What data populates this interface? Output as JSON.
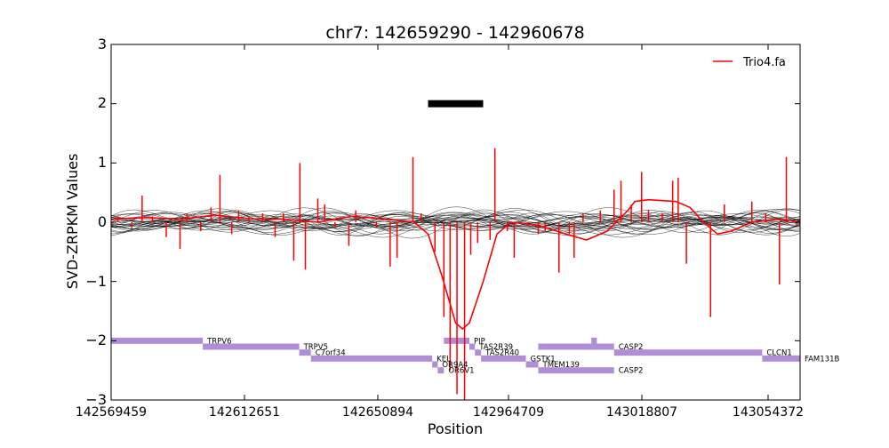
{
  "chart_data": {
    "type": "line",
    "title": "chr7: 142659290 - 142960678",
    "xlabel": "Position",
    "ylabel": "SVD-ZRPKM Values",
    "ylim": [
      -3,
      3
    ],
    "y_ticks": [
      "3",
      "2",
      "1",
      "0",
      "−1",
      "−2",
      "−3"
    ],
    "x_tick_labels": [
      "142569459",
      "142612651",
      "142650894",
      "142964709",
      "143018807",
      "143054372"
    ],
    "legend_location": "top-right",
    "grid": false,
    "colors": {
      "highlight": "#ff0000",
      "background_lines": "#000000",
      "genes": "#b08ed6",
      "call_bar": "#000000"
    },
    "series": [
      {
        "name": "Trio4.fa",
        "smooth": [
          [
            0,
            0.05
          ],
          [
            5,
            0.08
          ],
          [
            10,
            0.05
          ],
          [
            15,
            0.12
          ],
          [
            20,
            0.06
          ],
          [
            25,
            0.05
          ],
          [
            30,
            0.0
          ],
          [
            35,
            0.1
          ],
          [
            40,
            0.05
          ],
          [
            44,
            0.0
          ],
          [
            46,
            -0.2
          ],
          [
            48,
            -0.9
          ],
          [
            50,
            -1.7
          ],
          [
            51,
            -1.8
          ],
          [
            52,
            -1.7
          ],
          [
            54,
            -1.0
          ],
          [
            56,
            -0.2
          ],
          [
            58,
            0.0
          ],
          [
            62,
            -0.05
          ],
          [
            66,
            -0.2
          ],
          [
            69,
            -0.3
          ],
          [
            72,
            -0.15
          ],
          [
            75,
            0.2
          ],
          [
            76,
            0.35
          ],
          [
            78,
            0.38
          ],
          [
            82,
            0.35
          ],
          [
            84,
            0.25
          ],
          [
            86,
            0.0
          ],
          [
            88,
            -0.2
          ],
          [
            90,
            -0.15
          ],
          [
            93,
            0.0
          ],
          [
            97,
            0.05
          ],
          [
            100,
            0.0
          ]
        ],
        "raw": [
          [
            1,
            0.1
          ],
          [
            3,
            -0.1
          ],
          [
            4.5,
            0.45
          ],
          [
            6,
            0.1
          ],
          [
            8,
            -0.25
          ],
          [
            10,
            -0.45
          ],
          [
            11,
            0.15
          ],
          [
            13,
            -0.15
          ],
          [
            14.5,
            0.25
          ],
          [
            15.8,
            0.8
          ],
          [
            17.5,
            -0.2
          ],
          [
            18.5,
            0.2
          ],
          [
            20,
            0.1
          ],
          [
            22,
            0.15
          ],
          [
            23.8,
            -0.25
          ],
          [
            25,
            0.15
          ],
          [
            26.5,
            -0.65
          ],
          [
            27.4,
            1.0
          ],
          [
            28.2,
            -0.8
          ],
          [
            30,
            0.4
          ],
          [
            31,
            0.3
          ],
          [
            32.5,
            -0.1
          ],
          [
            34.5,
            -0.4
          ],
          [
            35.5,
            0.2
          ],
          [
            37,
            0.0
          ],
          [
            38.5,
            -0.1
          ],
          [
            40.5,
            -0.75
          ],
          [
            41.5,
            -0.6
          ],
          [
            43.8,
            1.1
          ],
          [
            45,
            0.15
          ],
          [
            47,
            -0.5
          ],
          [
            48.3,
            -1.6
          ],
          [
            49.2,
            -2.5
          ],
          [
            50.2,
            -2.9
          ],
          [
            51.3,
            -3.0
          ],
          [
            52.2,
            -0.55
          ],
          [
            53.2,
            -0.35
          ],
          [
            55,
            -0.3
          ],
          [
            55.7,
            1.25
          ],
          [
            57.5,
            -0.15
          ],
          [
            58.5,
            -0.6
          ],
          [
            60.5,
            -0.05
          ],
          [
            62,
            -0.2
          ],
          [
            63,
            -0.15
          ],
          [
            65,
            -0.85
          ],
          [
            66.5,
            -0.2
          ],
          [
            67.2,
            -0.6
          ],
          [
            68.5,
            0.15
          ],
          [
            70,
            0.0
          ],
          [
            71,
            0.2
          ],
          [
            73,
            0.55
          ],
          [
            74,
            0.7
          ],
          [
            75.5,
            0.3
          ],
          [
            77,
            0.85
          ],
          [
            78,
            0.2
          ],
          [
            80,
            0.15
          ],
          [
            81.5,
            0.7
          ],
          [
            82.3,
            0.75
          ],
          [
            83.5,
            -0.7
          ],
          [
            87,
            -1.6
          ],
          [
            89,
            0.3
          ],
          [
            91,
            0.0
          ],
          [
            93,
            0.35
          ],
          [
            95,
            0.15
          ],
          [
            97,
            -1.05
          ],
          [
            98,
            1.1
          ],
          [
            99.5,
            -0.05
          ]
        ]
      }
    ],
    "genes": [
      {
        "label": "TRPV6",
        "start": 0.0,
        "end": 13.3,
        "y": -2.0
      },
      {
        "label": "TRPV5",
        "start": 13.3,
        "end": 27.3,
        "y": -2.1
      },
      {
        "label": "C7orf34",
        "start": 27.3,
        "end": 29.0,
        "y": -2.2
      },
      {
        "label": "KEL",
        "start": 29.0,
        "end": 46.6,
        "y": -2.3
      },
      {
        "label": "OR9A4",
        "start": 46.6,
        "end": 47.4,
        "y": -2.4
      },
      {
        "label": "OR6V1",
        "start": 47.4,
        "end": 48.3,
        "y": -2.5
      },
      {
        "label": "PIP",
        "start": 48.3,
        "end": 52.0,
        "y": -2.0
      },
      {
        "label": "TAS2R39",
        "start": 52.0,
        "end": 52.8,
        "y": -2.1
      },
      {
        "label": "TAS2R40",
        "start": 52.8,
        "end": 53.7,
        "y": -2.2
      },
      {
        "label": "GSTK1",
        "start": 53.7,
        "end": 60.2,
        "y": -2.3
      },
      {
        "label": "TMEM139",
        "start": 60.2,
        "end": 62.0,
        "y": -2.4
      },
      {
        "label": "CASP2",
        "start": 62.0,
        "end": 73.0,
        "y": -2.1
      },
      {
        "label": "CASP2",
        "start": 62.0,
        "end": 73.0,
        "y": -2.5
      },
      {
        "label": "CLCN1",
        "start": 73.0,
        "end": 94.5,
        "y": -2.2
      },
      {
        "label": "FAM131B",
        "start": 94.5,
        "end": 100.0,
        "y": -2.3
      }
    ],
    "gene_small_marks": [
      {
        "start": 69.7,
        "end": 70.5,
        "y": -2.0
      }
    ],
    "call_segment": {
      "start": 46.0,
      "end": 54.0,
      "y": 2.0
    }
  }
}
